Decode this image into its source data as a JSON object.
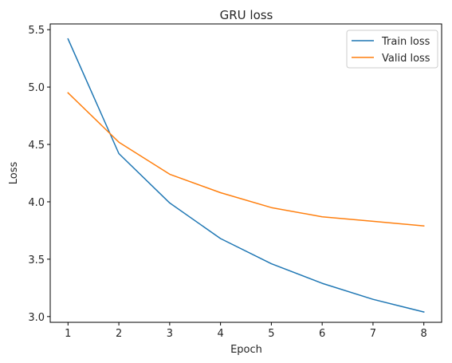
{
  "chart_data": {
    "type": "line",
    "title": "GRU loss",
    "xlabel": "Epoch",
    "ylabel": "Loss",
    "x": [
      1,
      2,
      3,
      4,
      5,
      6,
      7,
      8
    ],
    "xticks": [
      "1",
      "2",
      "3",
      "4",
      "5",
      "6",
      "7",
      "8"
    ],
    "yticks": [
      "3.0",
      "3.5",
      "4.0",
      "4.5",
      "5.0",
      "5.5"
    ],
    "xlim": [
      0.65,
      8.35
    ],
    "ylim": [
      2.95,
      5.55
    ],
    "grid": false,
    "legend_position": "top-right",
    "series": [
      {
        "name": "Train loss",
        "color": "#1f77b4",
        "values": [
          5.42,
          4.42,
          3.99,
          3.68,
          3.46,
          3.29,
          3.15,
          3.04
        ]
      },
      {
        "name": "Valid loss",
        "color": "#ff7f0e",
        "values": [
          4.95,
          4.52,
          4.24,
          4.08,
          3.95,
          3.87,
          3.83,
          3.79
        ]
      }
    ]
  }
}
